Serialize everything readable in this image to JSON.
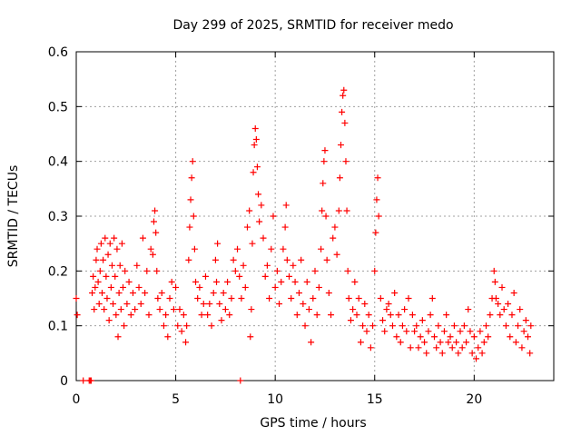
{
  "chart_data": {
    "type": "scatter",
    "title": "Day 299 of 2025, SRMTID for receiver medo",
    "xlabel": "GPS time / hours",
    "ylabel": "SRMTID / TECUs",
    "xlim": [
      0,
      24
    ],
    "ylim": [
      0,
      0.6
    ],
    "xticks": [
      0,
      5,
      10,
      15,
      20
    ],
    "xtick_labels": [
      "0",
      "5",
      "10",
      "15",
      "20"
    ],
    "yticks": [
      0,
      0.1,
      0.2,
      0.3,
      0.4,
      0.5,
      0.6
    ],
    "ytick_labels": [
      "0",
      "0.1",
      "0.2",
      "0.3",
      "0.4",
      "0.5",
      "0.6"
    ],
    "grid": true,
    "marker": "+",
    "color": "#ff0000",
    "series": [
      {
        "name": "SRMTID",
        "points": [
          [
            0.0,
            0.15
          ],
          [
            0.05,
            0.12
          ],
          [
            0.35,
            0.0
          ],
          [
            0.65,
            0.0
          ],
          [
            0.7,
            0.0
          ],
          [
            0.75,
            0.0
          ],
          [
            8.25,
            0.0
          ],
          [
            0.8,
            0.16
          ],
          [
            0.85,
            0.19
          ],
          [
            0.9,
            0.13
          ],
          [
            0.95,
            0.17
          ],
          [
            1.0,
            0.22
          ],
          [
            1.05,
            0.24
          ],
          [
            1.1,
            0.18
          ],
          [
            1.15,
            0.14
          ],
          [
            1.2,
            0.2
          ],
          [
            1.25,
            0.25
          ],
          [
            1.3,
            0.16
          ],
          [
            1.35,
            0.22
          ],
          [
            1.4,
            0.13
          ],
          [
            1.45,
            0.26
          ],
          [
            1.5,
            0.19
          ],
          [
            1.55,
            0.15
          ],
          [
            1.6,
            0.23
          ],
          [
            1.65,
            0.11
          ],
          [
            1.7,
            0.25
          ],
          [
            1.75,
            0.17
          ],
          [
            1.8,
            0.21
          ],
          [
            1.85,
            0.14
          ],
          [
            1.9,
            0.26
          ],
          [
            1.95,
            0.19
          ],
          [
            2.0,
            0.12
          ],
          [
            2.05,
            0.24
          ],
          [
            2.1,
            0.08
          ],
          [
            2.15,
            0.16
          ],
          [
            2.2,
            0.21
          ],
          [
            2.25,
            0.13
          ],
          [
            2.3,
            0.25
          ],
          [
            2.35,
            0.17
          ],
          [
            2.4,
            0.1
          ],
          [
            2.45,
            0.2
          ],
          [
            2.55,
            0.14
          ],
          [
            2.65,
            0.18
          ],
          [
            2.75,
            0.12
          ],
          [
            2.85,
            0.16
          ],
          [
            2.95,
            0.13
          ],
          [
            3.05,
            0.21
          ],
          [
            3.15,
            0.17
          ],
          [
            3.25,
            0.14
          ],
          [
            3.35,
            0.26
          ],
          [
            3.45,
            0.16
          ],
          [
            3.55,
            0.2
          ],
          [
            3.65,
            0.12
          ],
          [
            3.75,
            0.24
          ],
          [
            3.85,
            0.23
          ],
          [
            3.9,
            0.29
          ],
          [
            3.95,
            0.31
          ],
          [
            4.0,
            0.27
          ],
          [
            4.05,
            0.2
          ],
          [
            4.1,
            0.15
          ],
          [
            4.2,
            0.13
          ],
          [
            4.3,
            0.16
          ],
          [
            4.4,
            0.1
          ],
          [
            4.5,
            0.12
          ],
          [
            4.6,
            0.08
          ],
          [
            4.7,
            0.15
          ],
          [
            4.8,
            0.18
          ],
          [
            4.9,
            0.13
          ],
          [
            5.0,
            0.17
          ],
          [
            5.1,
            0.1
          ],
          [
            5.2,
            0.13
          ],
          [
            5.3,
            0.09
          ],
          [
            5.4,
            0.12
          ],
          [
            5.5,
            0.07
          ],
          [
            5.55,
            0.1
          ],
          [
            5.65,
            0.22
          ],
          [
            5.7,
            0.28
          ],
          [
            5.75,
            0.33
          ],
          [
            5.8,
            0.37
          ],
          [
            5.85,
            0.4
          ],
          [
            5.9,
            0.3
          ],
          [
            5.95,
            0.24
          ],
          [
            6.0,
            0.18
          ],
          [
            6.1,
            0.15
          ],
          [
            6.2,
            0.17
          ],
          [
            6.3,
            0.12
          ],
          [
            6.4,
            0.14
          ],
          [
            6.5,
            0.19
          ],
          [
            6.6,
            0.12
          ],
          [
            6.7,
            0.14
          ],
          [
            6.8,
            0.1
          ],
          [
            6.9,
            0.16
          ],
          [
            7.0,
            0.22
          ],
          [
            7.05,
            0.18
          ],
          [
            7.1,
            0.25
          ],
          [
            7.2,
            0.14
          ],
          [
            7.3,
            0.11
          ],
          [
            7.4,
            0.16
          ],
          [
            7.5,
            0.13
          ],
          [
            7.6,
            0.18
          ],
          [
            7.7,
            0.12
          ],
          [
            7.8,
            0.15
          ],
          [
            7.9,
            0.22
          ],
          [
            8.0,
            0.2
          ],
          [
            8.1,
            0.24
          ],
          [
            8.2,
            0.19
          ],
          [
            8.3,
            0.15
          ],
          [
            8.4,
            0.21
          ],
          [
            8.5,
            0.17
          ],
          [
            8.6,
            0.28
          ],
          [
            8.7,
            0.31
          ],
          [
            8.75,
            0.08
          ],
          [
            8.8,
            0.13
          ],
          [
            8.85,
            0.25
          ],
          [
            8.9,
            0.38
          ],
          [
            8.95,
            0.43
          ],
          [
            9.0,
            0.46
          ],
          [
            9.05,
            0.44
          ],
          [
            9.1,
            0.39
          ],
          [
            9.15,
            0.34
          ],
          [
            9.2,
            0.29
          ],
          [
            9.3,
            0.32
          ],
          [
            9.4,
            0.26
          ],
          [
            9.5,
            0.19
          ],
          [
            9.6,
            0.21
          ],
          [
            9.7,
            0.15
          ],
          [
            9.8,
            0.24
          ],
          [
            9.9,
            0.3
          ],
          [
            10.0,
            0.17
          ],
          [
            10.1,
            0.2
          ],
          [
            10.2,
            0.14
          ],
          [
            10.3,
            0.18
          ],
          [
            10.4,
            0.24
          ],
          [
            10.5,
            0.28
          ],
          [
            10.55,
            0.32
          ],
          [
            10.6,
            0.22
          ],
          [
            10.7,
            0.19
          ],
          [
            10.8,
            0.15
          ],
          [
            10.9,
            0.21
          ],
          [
            11.0,
            0.18
          ],
          [
            11.1,
            0.12
          ],
          [
            11.2,
            0.16
          ],
          [
            11.3,
            0.22
          ],
          [
            11.4,
            0.14
          ],
          [
            11.5,
            0.1
          ],
          [
            11.6,
            0.18
          ],
          [
            11.7,
            0.13
          ],
          [
            11.8,
            0.07
          ],
          [
            11.9,
            0.15
          ],
          [
            12.0,
            0.2
          ],
          [
            12.1,
            0.12
          ],
          [
            12.2,
            0.17
          ],
          [
            12.3,
            0.24
          ],
          [
            12.35,
            0.31
          ],
          [
            12.4,
            0.36
          ],
          [
            12.45,
            0.4
          ],
          [
            12.5,
            0.42
          ],
          [
            12.55,
            0.3
          ],
          [
            12.6,
            0.22
          ],
          [
            12.7,
            0.16
          ],
          [
            12.8,
            0.12
          ],
          [
            12.9,
            0.26
          ],
          [
            13.0,
            0.28
          ],
          [
            13.1,
            0.23
          ],
          [
            13.2,
            0.31
          ],
          [
            13.25,
            0.37
          ],
          [
            13.3,
            0.43
          ],
          [
            13.35,
            0.49
          ],
          [
            13.4,
            0.52
          ],
          [
            13.45,
            0.53
          ],
          [
            13.5,
            0.47
          ],
          [
            13.55,
            0.4
          ],
          [
            13.6,
            0.31
          ],
          [
            13.65,
            0.2
          ],
          [
            13.7,
            0.15
          ],
          [
            13.8,
            0.11
          ],
          [
            13.9,
            0.13
          ],
          [
            14.0,
            0.18
          ],
          [
            14.1,
            0.12
          ],
          [
            14.2,
            0.15
          ],
          [
            14.3,
            0.07
          ],
          [
            14.4,
            0.1
          ],
          [
            14.5,
            0.14
          ],
          [
            14.6,
            0.09
          ],
          [
            14.7,
            0.12
          ],
          [
            14.8,
            0.06
          ],
          [
            14.9,
            0.1
          ],
          [
            15.0,
            0.2
          ],
          [
            15.05,
            0.27
          ],
          [
            15.1,
            0.33
          ],
          [
            15.15,
            0.37
          ],
          [
            15.2,
            0.3
          ],
          [
            15.3,
            0.15
          ],
          [
            15.4,
            0.11
          ],
          [
            15.5,
            0.09
          ],
          [
            15.6,
            0.13
          ],
          [
            15.7,
            0.14
          ],
          [
            15.8,
            0.12
          ],
          [
            15.9,
            0.1
          ],
          [
            16.0,
            0.16
          ],
          [
            16.1,
            0.08
          ],
          [
            16.2,
            0.12
          ],
          [
            16.3,
            0.07
          ],
          [
            16.4,
            0.1
          ],
          [
            16.5,
            0.13
          ],
          [
            16.6,
            0.09
          ],
          [
            16.7,
            0.15
          ],
          [
            16.8,
            0.06
          ],
          [
            16.9,
            0.12
          ],
          [
            17.0,
            0.09
          ],
          [
            17.1,
            0.1
          ],
          [
            17.2,
            0.06
          ],
          [
            17.3,
            0.08
          ],
          [
            17.4,
            0.11
          ],
          [
            17.5,
            0.07
          ],
          [
            17.6,
            0.05
          ],
          [
            17.7,
            0.09
          ],
          [
            17.8,
            0.12
          ],
          [
            17.9,
            0.15
          ],
          [
            18.0,
            0.08
          ],
          [
            18.1,
            0.06
          ],
          [
            18.2,
            0.1
          ],
          [
            18.3,
            0.07
          ],
          [
            18.4,
            0.05
          ],
          [
            18.5,
            0.09
          ],
          [
            18.6,
            0.12
          ],
          [
            18.7,
            0.07
          ],
          [
            18.8,
            0.08
          ],
          [
            18.9,
            0.06
          ],
          [
            19.0,
            0.1
          ],
          [
            19.1,
            0.07
          ],
          [
            19.2,
            0.05
          ],
          [
            19.3,
            0.09
          ],
          [
            19.4,
            0.06
          ],
          [
            19.5,
            0.1
          ],
          [
            19.6,
            0.07
          ],
          [
            19.7,
            0.13
          ],
          [
            19.8,
            0.09
          ],
          [
            19.9,
            0.05
          ],
          [
            20.0,
            0.08
          ],
          [
            20.1,
            0.04
          ],
          [
            20.2,
            0.06
          ],
          [
            20.3,
            0.09
          ],
          [
            20.4,
            0.05
          ],
          [
            20.5,
            0.07
          ],
          [
            20.6,
            0.1
          ],
          [
            20.7,
            0.08
          ],
          [
            20.8,
            0.12
          ],
          [
            20.9,
            0.15
          ],
          [
            21.0,
            0.2
          ],
          [
            21.05,
            0.18
          ],
          [
            21.1,
            0.15
          ],
          [
            21.2,
            0.14
          ],
          [
            21.3,
            0.12
          ],
          [
            21.4,
            0.17
          ],
          [
            21.5,
            0.13
          ],
          [
            21.6,
            0.1
          ],
          [
            21.7,
            0.14
          ],
          [
            21.8,
            0.08
          ],
          [
            21.9,
            0.12
          ],
          [
            22.0,
            0.16
          ],
          [
            22.1,
            0.07
          ],
          [
            22.2,
            0.1
          ],
          [
            22.3,
            0.13
          ],
          [
            22.4,
            0.06
          ],
          [
            22.5,
            0.09
          ],
          [
            22.6,
            0.11
          ],
          [
            22.7,
            0.08
          ],
          [
            22.8,
            0.05
          ],
          [
            22.85,
            0.1
          ]
        ]
      }
    ]
  }
}
